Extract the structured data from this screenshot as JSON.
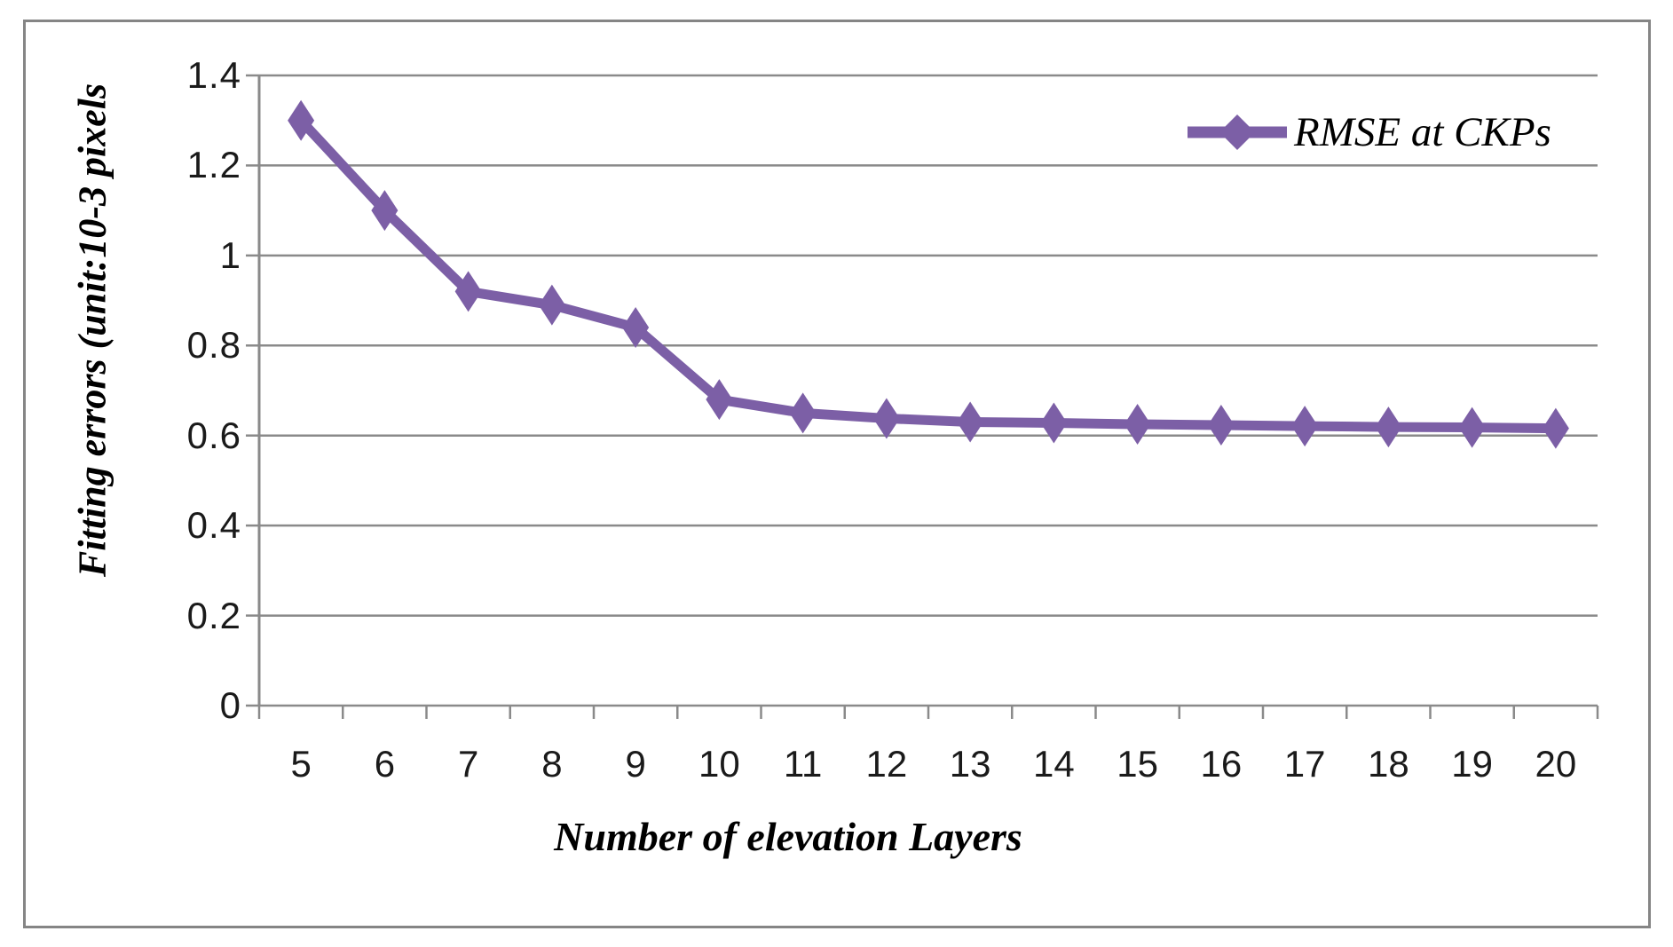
{
  "figure": {
    "background": "#ffffff",
    "border_color": "#858585"
  },
  "chart_data": {
    "type": "line",
    "title": "",
    "xlabel": "Number of elevation Layers",
    "ylabel": "Fitting errors (unit:10-3 pixels",
    "categories": [
      "5",
      "6",
      "7",
      "8",
      "9",
      "10",
      "11",
      "12",
      "13",
      "14",
      "15",
      "16",
      "17",
      "18",
      "19",
      "20"
    ],
    "series": [
      {
        "name": "RMSE at CKPs",
        "color": "#7C5FA6",
        "marker": "diamond",
        "values": [
          1.3,
          1.1,
          0.92,
          0.89,
          0.84,
          0.68,
          0.65,
          0.638,
          0.63,
          0.628,
          0.625,
          0.623,
          0.621,
          0.619,
          0.618,
          0.616
        ]
      }
    ],
    "ylim": [
      0,
      1.4
    ],
    "y_ticks": [
      "0",
      "0.2",
      "0.4",
      "0.6",
      "0.8",
      "1",
      "1.2",
      "1.4"
    ],
    "grid": "horizontal",
    "legend_position": "top-right",
    "axis_color": "#8a8a8a",
    "tick_label_color": "#1a1a1a"
  }
}
